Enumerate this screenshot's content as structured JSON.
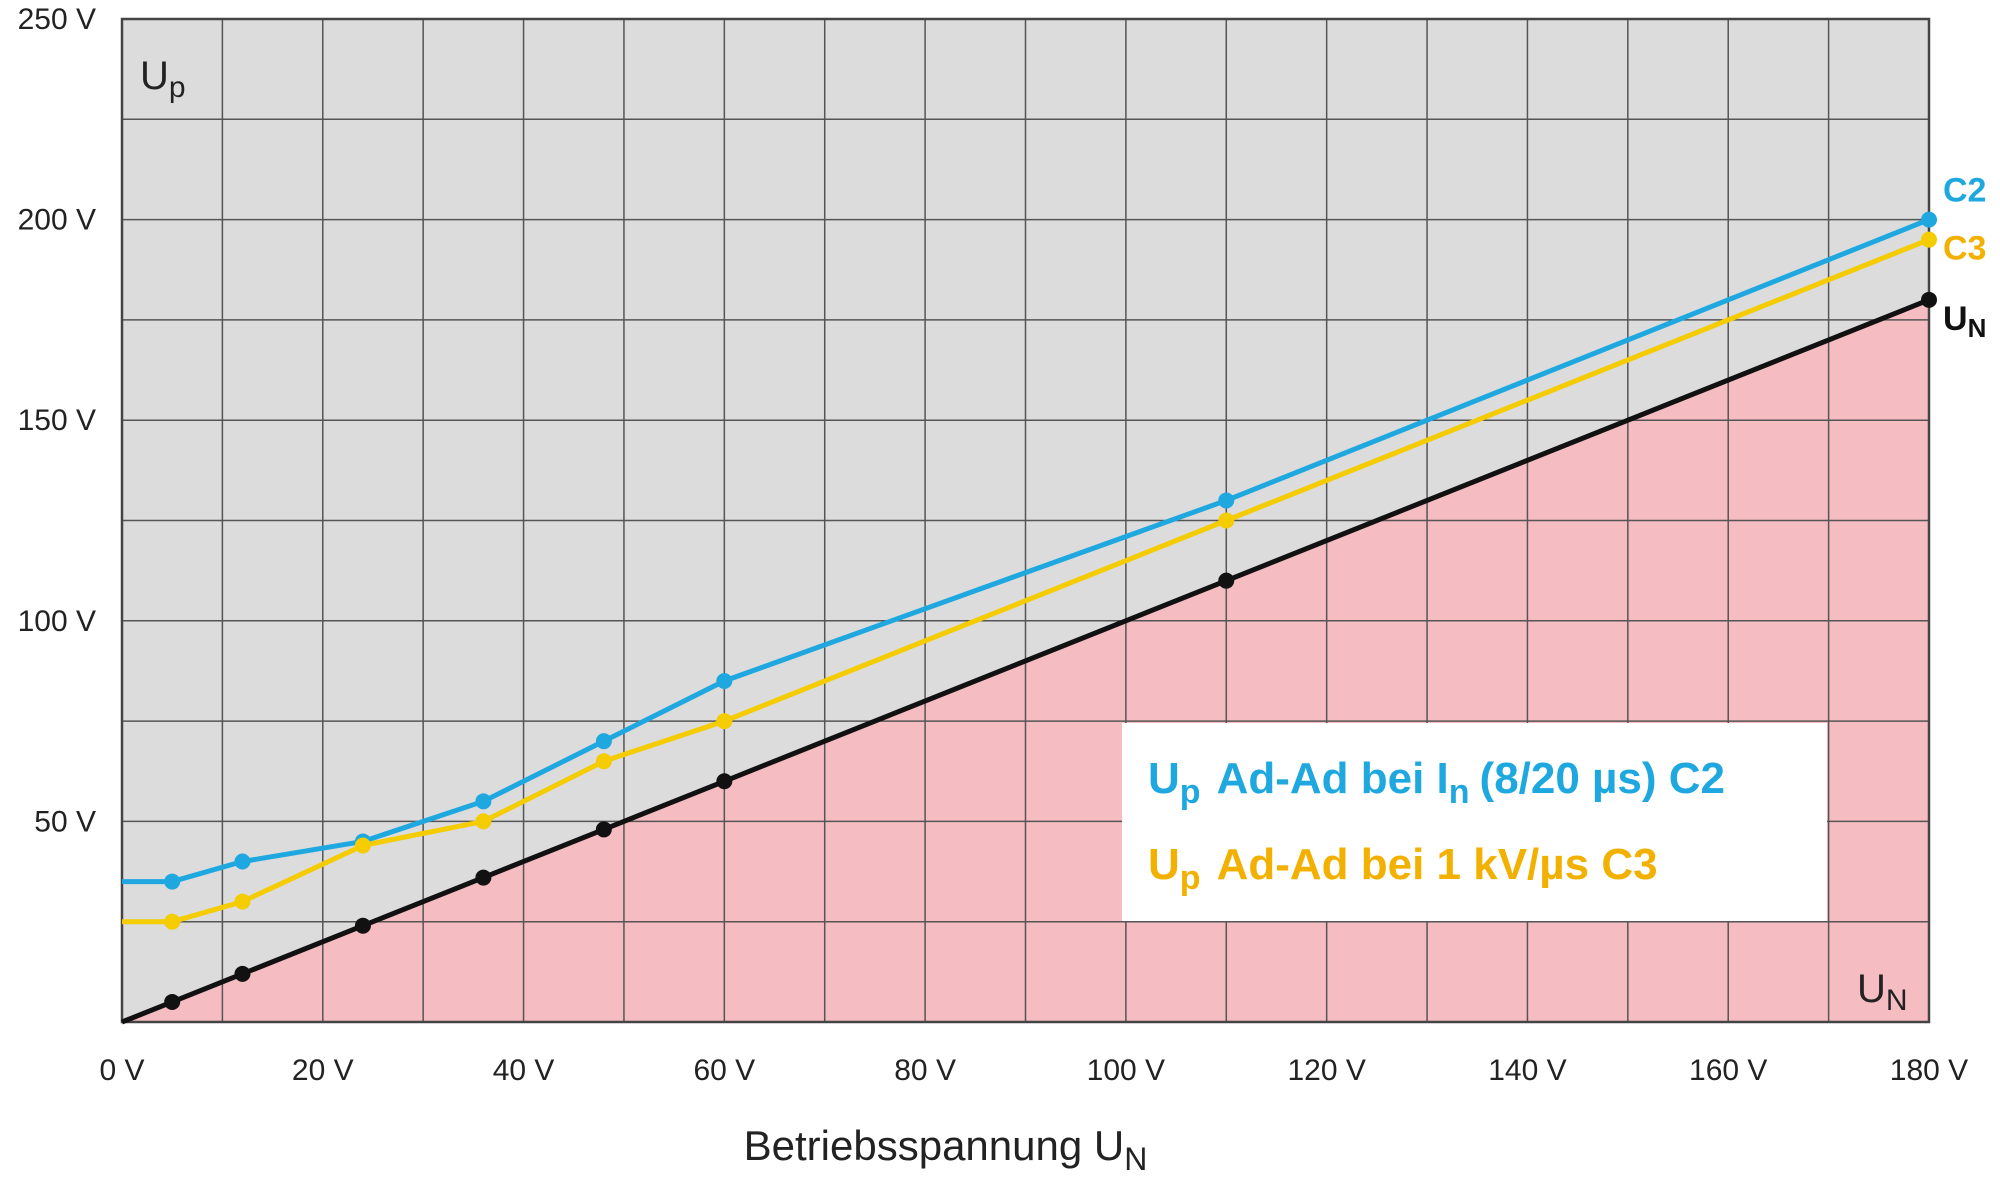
{
  "chart_data": {
    "type": "line",
    "corner_label": {
      "text": "U",
      "sub": "p"
    },
    "corner_label_x": {
      "text": "U",
      "sub": "N"
    },
    "x_label": {
      "text": "Betriebsspannung U",
      "sub": "N"
    },
    "x": [
      0,
      5,
      12,
      24,
      36,
      48,
      60,
      110,
      180
    ],
    "series": [
      {
        "name": "C2",
        "color": "#1fa8e0",
        "values": [
          35,
          35,
          40,
          45,
          55,
          70,
          85,
          130,
          200
        ]
      },
      {
        "name": "C3",
        "color": "#f4cc00",
        "label_color": "#f2b000",
        "values": [
          25,
          25,
          30,
          44,
          50,
          65,
          75,
          125,
          195
        ]
      },
      {
        "name": "U",
        "name_sub": "N",
        "color": "#111111",
        "values": [
          0,
          5,
          12,
          24,
          36,
          48,
          60,
          110,
          180
        ],
        "area_fill": "#f5bcc1"
      }
    ],
    "legend_box": [
      {
        "symbol": "U",
        "symbol_sub": "p",
        "text_a": "Ad-Ad bei I",
        "text_a_sub": "n",
        "text_b": "(8/20 µs) C2",
        "color": "#1fa8e0"
      },
      {
        "symbol": "U",
        "symbol_sub": "p",
        "text_a": "Ad-Ad bei 1 kV/µs C3",
        "color": "#f2b000"
      }
    ],
    "xlim": [
      0,
      180
    ],
    "ylim": [
      0,
      250
    ],
    "xticks": [
      {
        "value": 0,
        "label": "0 V"
      },
      {
        "value": 20,
        "label": "20 V"
      },
      {
        "value": 40,
        "label": "40 V"
      },
      {
        "value": 60,
        "label": "60 V"
      },
      {
        "value": 80,
        "label": "80 V"
      },
      {
        "value": 100,
        "label": "100 V"
      },
      {
        "value": 120,
        "label": "120 V"
      },
      {
        "value": 140,
        "label": "140 V"
      },
      {
        "value": 160,
        "label": "160 V"
      },
      {
        "value": 180,
        "label": "180 V"
      }
    ],
    "xminorticks": [
      10,
      30,
      50,
      70,
      90,
      110,
      130,
      150,
      170
    ],
    "yticks": [
      {
        "value": 50,
        "label": "50 V"
      },
      {
        "value": 100,
        "label": "100 V"
      },
      {
        "value": 150,
        "label": "150 V"
      },
      {
        "value": 200,
        "label": "200 V"
      },
      {
        "value": 250,
        "label": "250 V"
      }
    ],
    "yminorticks": [
      25,
      75,
      125,
      175,
      225
    ],
    "plot_background": "#dcdcdc",
    "grid": true
  }
}
